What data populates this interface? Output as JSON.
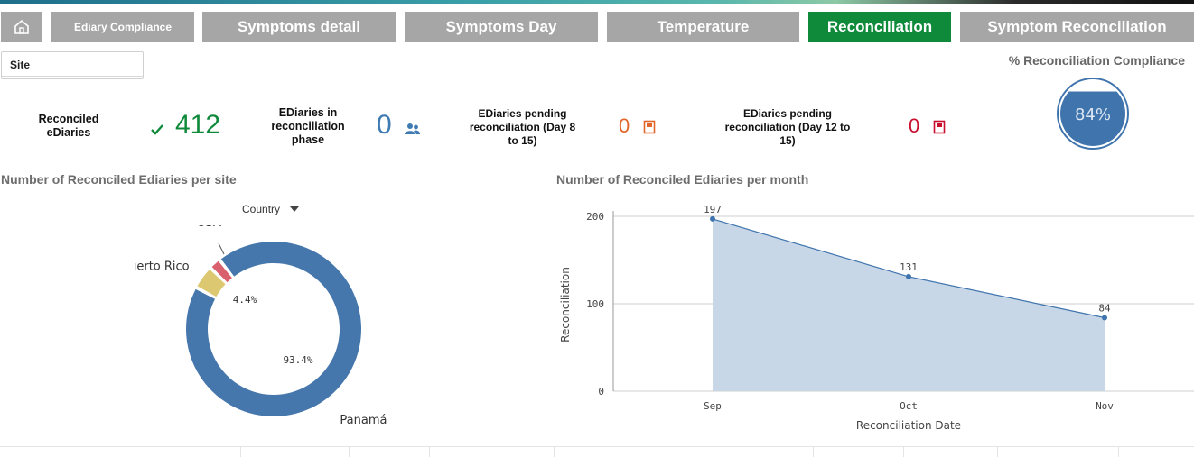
{
  "tabs": [
    {
      "label": "Ediary Compliance"
    },
    {
      "label": "Symptoms detail"
    },
    {
      "label": "Symptoms Day"
    },
    {
      "label": "Temperature"
    },
    {
      "label": "Reconciliation"
    },
    {
      "label": "Symptom Reconciliation"
    }
  ],
  "filter": {
    "site_label": "Site"
  },
  "kpis": {
    "reconciled": {
      "label1": "Reconciled",
      "label2": "eDiaries",
      "value": "412",
      "icon": "check-icon",
      "color": "#0f8a3a"
    },
    "in_phase": {
      "label1": "EDiaries in",
      "label2": "reconciliation",
      "label3": "phase",
      "value": "0",
      "icon": "users-icon",
      "color": "#3f7ab3"
    },
    "pending_8_15": {
      "label1": "EDiaries pending",
      "label2": "reconciliation (Day 8",
      "label3": "to 15)",
      "value": "0",
      "icon": "book-icon",
      "color": "#e0662a"
    },
    "pending_12_15": {
      "label1": "EDiaries pending",
      "label2": "reconciliation (Day 12 to",
      "label3": "15)",
      "value": "0",
      "icon": "book-icon",
      "color": "#c8102e"
    }
  },
  "compliance": {
    "title": "% Reconciliation Compliance",
    "value_label": "84%",
    "value": 84,
    "color": "#3f74ad"
  },
  "site_chart": {
    "title": "Number of Reconciled Ediaries per site",
    "dimension_label": "Country"
  },
  "month_chart": {
    "title": "Number of Reconciled Ediaries per month"
  },
  "chart_data": [
    {
      "type": "pie",
      "subtype": "donut",
      "title": "Number of Reconciled Ediaries per site",
      "slices": [
        {
          "label": "Panamá",
          "percent": 93.4,
          "percent_label": "93.4%",
          "color": "#4677ac"
        },
        {
          "label": "Puerto Rico",
          "percent": 4.4,
          "percent_label": "4.4%",
          "color": "#ddc872"
        },
        {
          "label": "USA",
          "percent": 2.2,
          "percent_label": "",
          "color": "#d9616d"
        }
      ]
    },
    {
      "type": "area",
      "title": "Number of Reconciled Ediaries per month",
      "categories": [
        "Sep",
        "Oct",
        "Nov"
      ],
      "values": [
        197,
        131,
        84
      ],
      "value_labels": [
        "197",
        "131",
        "84"
      ],
      "xlabel": "Reconciliation Date",
      "ylabel": "Reconciliation",
      "ylim": [
        0,
        200
      ],
      "yticks": [
        0,
        100,
        200
      ],
      "ytick_labels": [
        "0",
        "100",
        "200"
      ],
      "grid": true,
      "color": "#3f74ad"
    }
  ]
}
